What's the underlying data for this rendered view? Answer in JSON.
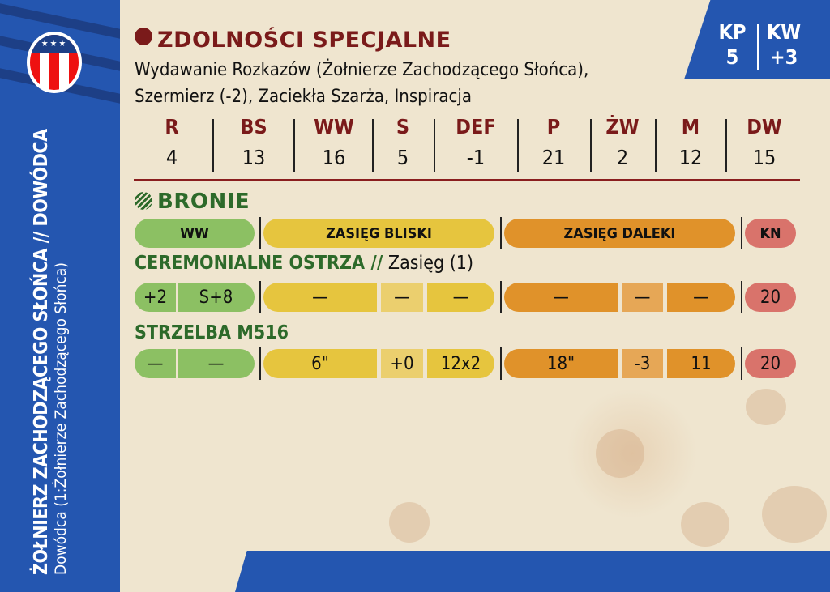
{
  "unit": {
    "name": "ŻOŁNIERZ ZACHODZĄCEGO SŁOŃCA // DOWÓDCA",
    "subtitle": "Dowódca (1:Żołnierze Zachodzącego Słońca)",
    "logo": "★★★"
  },
  "corner": {
    "kp_label": "KP",
    "kp_value": "5",
    "kw_label": "KW",
    "kw_value": "+3"
  },
  "abilities": {
    "title": "ZDOLNOŚCI SPECJALNE",
    "icon": "person-icon",
    "text": "Wydawanie Rozkazów (Żołnierze Zachodzącego Słońca), Szermierz (-2), Zaciekła Szarża, Inspiracja"
  },
  "stats": [
    {
      "l": "R",
      "v": "4"
    },
    {
      "l": "BS",
      "v": "13"
    },
    {
      "l": "WW",
      "v": "16"
    },
    {
      "l": "S",
      "v": "5"
    },
    {
      "l": "DEF",
      "v": "-1"
    },
    {
      "l": "P",
      "v": "21"
    },
    {
      "l": "ŻW",
      "v": "2"
    },
    {
      "l": "M",
      "v": "12"
    },
    {
      "l": "DW",
      "v": "15"
    }
  ],
  "weapons": {
    "title": "BRONIE",
    "icon": "crosshair-icon",
    "headers": {
      "ww": "WW",
      "close": "ZASIĘG BLISKI",
      "far": "ZASIĘG DALEKI",
      "kn": "KN"
    },
    "items": [
      {
        "name": "CEREMONIALNE OSTRZA //",
        "note": " Zasięg (1)",
        "cells": [
          "+2",
          "S+8",
          "—",
          "—",
          "—",
          "—",
          "—",
          "—",
          "20"
        ]
      },
      {
        "name": "STRZELBA M516",
        "note": "",
        "cells": [
          "—",
          "—",
          "6\"",
          "+0",
          "12x2",
          "18\"",
          "-3",
          "11",
          "20"
        ]
      }
    ]
  },
  "colors": {
    "blue": "#2456b0",
    "ww": "#8cc063",
    "close": "#e6c53e",
    "far": "#e0922a",
    "kn": "#d9736b",
    "title": "#7a1a1a",
    "weapon": "#2d6a2a"
  }
}
